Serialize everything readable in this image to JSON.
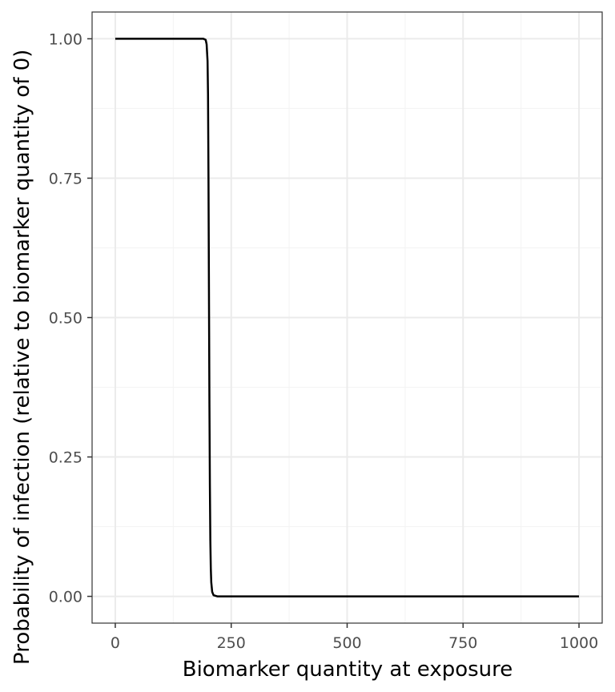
{
  "chart_data": {
    "type": "line",
    "title": "",
    "xlabel": "Biomarker quantity at exposure",
    "ylabel": "Probability of infection (relative to biomarker quantity of 0)",
    "xlim": [
      -50,
      1050
    ],
    "ylim": [
      -0.048,
      1.048
    ],
    "x_ticks": [
      0,
      250,
      500,
      750,
      1000
    ],
    "x_tick_labels": [
      "0",
      "250",
      "500",
      "750",
      "1000"
    ],
    "y_ticks": [
      0,
      0.25,
      0.5,
      0.75,
      1
    ],
    "y_tick_labels": [
      "0.00",
      "0.25",
      "0.50",
      "0.75",
      "1.00"
    ],
    "grid": true,
    "legend": "none",
    "colors": {
      "line": "#000000",
      "grid": "#ebebeb",
      "border": "#333333",
      "tick_text": "#4d4d4d"
    },
    "series": [
      {
        "x": [
          0,
          150,
          190,
          195,
          197,
          199,
          200,
          201,
          202,
          203,
          204,
          205,
          206,
          207,
          209,
          212,
          220,
          300,
          500,
          750,
          1000
        ],
        "y": [
          1,
          1,
          1,
          0.998,
          0.99,
          0.96,
          0.9,
          0.75,
          0.55,
          0.35,
          0.2,
          0.1,
          0.05,
          0.025,
          0.008,
          0.002,
          0,
          0,
          0,
          0,
          0
        ]
      }
    ]
  }
}
